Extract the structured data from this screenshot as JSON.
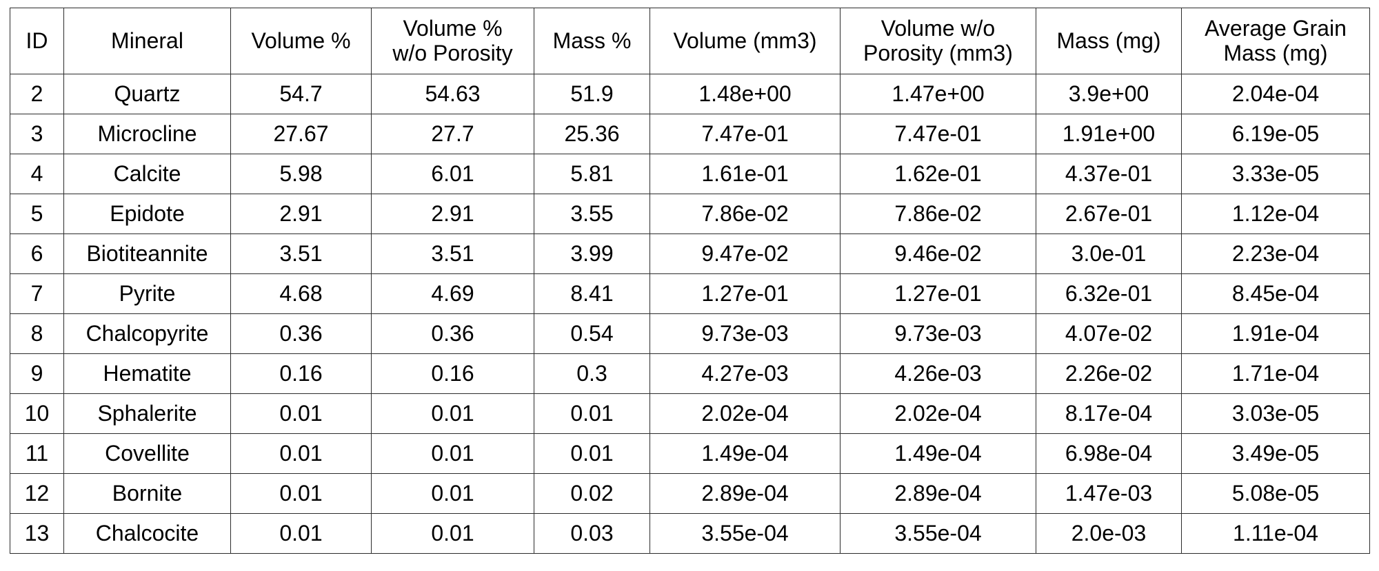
{
  "table": {
    "headers": [
      [
        "ID"
      ],
      [
        "Mineral"
      ],
      [
        "Volume %"
      ],
      [
        "Volume %",
        "w/o Porosity"
      ],
      [
        "Mass %"
      ],
      [
        "Volume (mm3)"
      ],
      [
        "Volume w/o",
        "Porosity (mm3)"
      ],
      [
        "Mass (mg)"
      ],
      [
        "Average Grain",
        "Mass (mg)"
      ]
    ],
    "rows": [
      [
        "2",
        "Quartz",
        "54.7",
        "54.63",
        "51.9",
        "1.48e+00",
        "1.47e+00",
        "3.9e+00",
        "2.04e-04"
      ],
      [
        "3",
        "Microcline",
        "27.67",
        "27.7",
        "25.36",
        "7.47e-01",
        "7.47e-01",
        "1.91e+00",
        "6.19e-05"
      ],
      [
        "4",
        "Calcite",
        "5.98",
        "6.01",
        "5.81",
        "1.61e-01",
        "1.62e-01",
        "4.37e-01",
        "3.33e-05"
      ],
      [
        "5",
        "Epidote",
        "2.91",
        "2.91",
        "3.55",
        "7.86e-02",
        "7.86e-02",
        "2.67e-01",
        "1.12e-04"
      ],
      [
        "6",
        "Biotiteannite",
        "3.51",
        "3.51",
        "3.99",
        "9.47e-02",
        "9.46e-02",
        "3.0e-01",
        "2.23e-04"
      ],
      [
        "7",
        "Pyrite",
        "4.68",
        "4.69",
        "8.41",
        "1.27e-01",
        "1.27e-01",
        "6.32e-01",
        "8.45e-04"
      ],
      [
        "8",
        "Chalcopyrite",
        "0.36",
        "0.36",
        "0.54",
        "9.73e-03",
        "9.73e-03",
        "4.07e-02",
        "1.91e-04"
      ],
      [
        "9",
        "Hematite",
        "0.16",
        "0.16",
        "0.3",
        "4.27e-03",
        "4.26e-03",
        "2.26e-02",
        "1.71e-04"
      ],
      [
        "10",
        "Sphalerite",
        "0.01",
        "0.01",
        "0.01",
        "2.02e-04",
        "2.02e-04",
        "8.17e-04",
        "3.03e-05"
      ],
      [
        "11",
        "Covellite",
        "0.01",
        "0.01",
        "0.01",
        "1.49e-04",
        "1.49e-04",
        "6.98e-04",
        "3.49e-05"
      ],
      [
        "12",
        "Bornite",
        "0.01",
        "0.01",
        "0.02",
        "2.89e-04",
        "2.89e-04",
        "1.47e-03",
        "5.08e-05"
      ],
      [
        "13",
        "Chalcocite",
        "0.01",
        "0.01",
        "0.03",
        "3.55e-04",
        "3.55e-04",
        "2.0e-03",
        "1.11e-04"
      ]
    ]
  }
}
